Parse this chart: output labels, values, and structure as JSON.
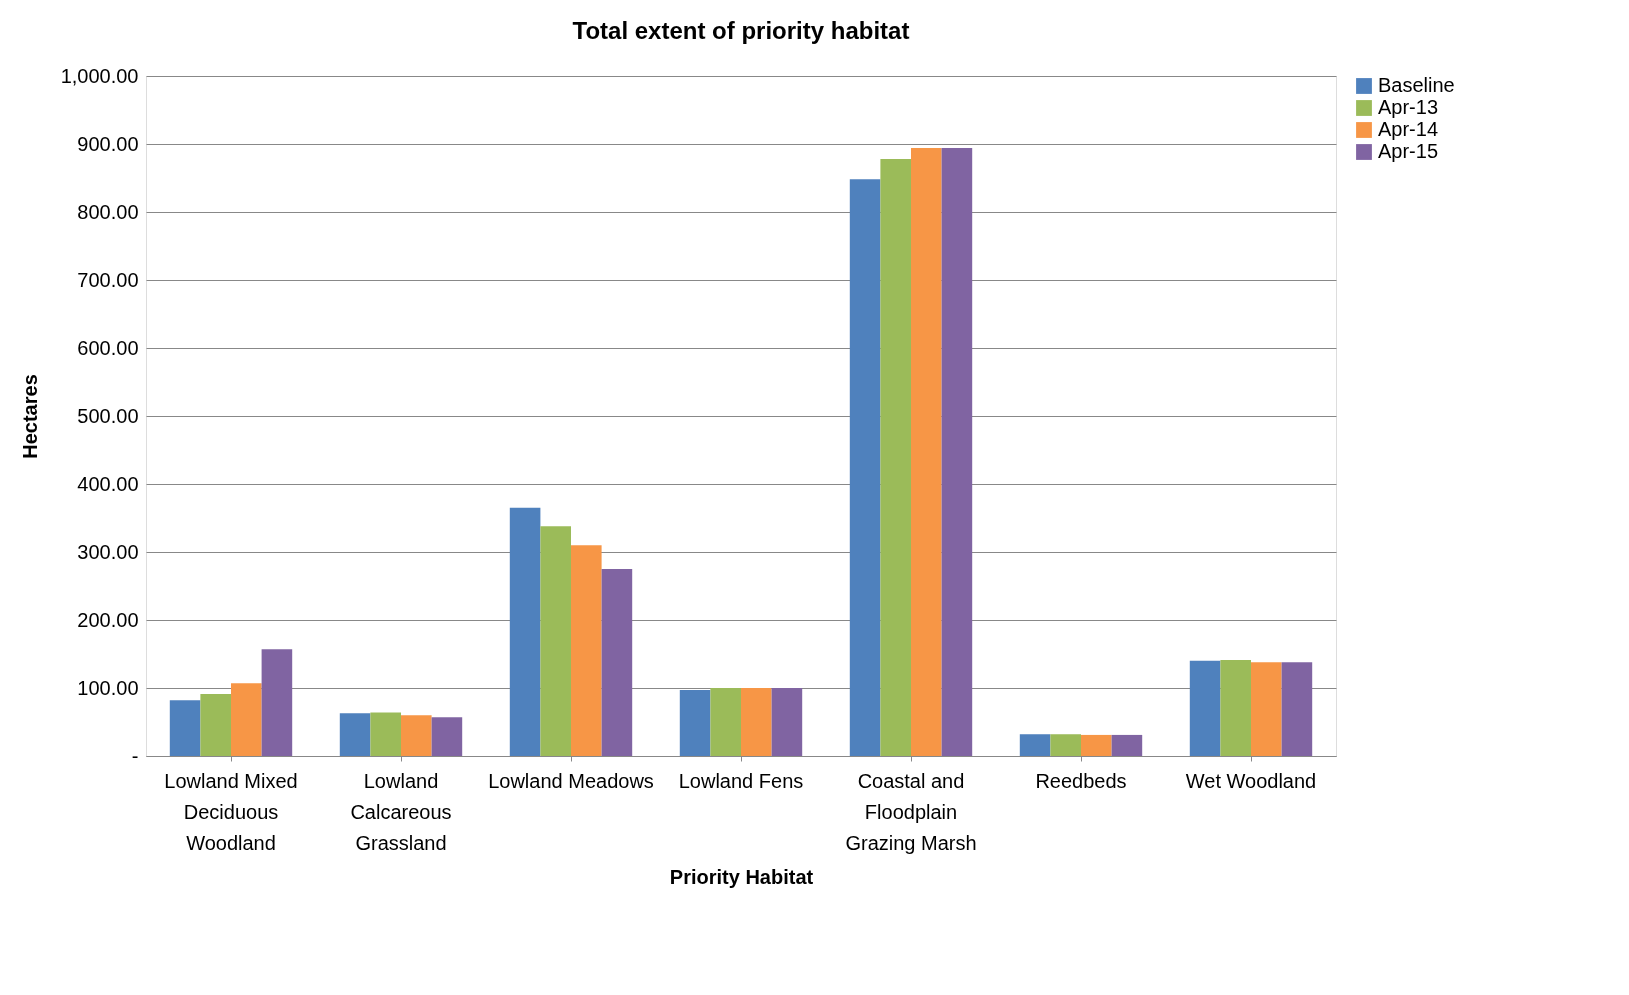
{
  "chart_data": {
    "type": "bar",
    "title": "Total extent of priority habitat",
    "xlabel": "Priority Habitat",
    "ylabel": "Hectares",
    "categories": [
      "Lowland Mixed Deciduous Woodland",
      "Lowland Calcareous Grassland",
      "Lowland Meadows",
      "Lowland Fens",
      "Coastal and Floodplain Grazing Marsh",
      "Reedbeds",
      "Wet Woodland"
    ],
    "series": [
      {
        "name": "Baseline",
        "color": "#4f81bd",
        "values": [
          82,
          63,
          365,
          97,
          848,
          32,
          140
        ]
      },
      {
        "name": "Apr-13",
        "color": "#9bbb59",
        "values": [
          91,
          64,
          338,
          100,
          878,
          32,
          141
        ]
      },
      {
        "name": "Apr-14",
        "color": "#f79646",
        "values": [
          107,
          60,
          310,
          100,
          894,
          31,
          138
        ]
      },
      {
        "name": "Apr-15",
        "color": "#8064a2",
        "values": [
          157,
          57,
          275,
          100,
          894,
          31,
          138
        ]
      }
    ],
    "ylim": [
      0,
      1000
    ],
    "yticks": [
      {
        "value": 0,
        "label": "-"
      },
      {
        "value": 100,
        "label": "100.00"
      },
      {
        "value": 200,
        "label": "200.00"
      },
      {
        "value": 300,
        "label": "300.00"
      },
      {
        "value": 400,
        "label": "400.00"
      },
      {
        "value": 500,
        "label": "500.00"
      },
      {
        "value": 600,
        "label": "600.00"
      },
      {
        "value": 700,
        "label": "700.00"
      },
      {
        "value": 800,
        "label": "800.00"
      },
      {
        "value": 900,
        "label": "900.00"
      },
      {
        "value": 1000,
        "label": "1,000.00"
      }
    ],
    "grid": "y",
    "legend": "right"
  }
}
